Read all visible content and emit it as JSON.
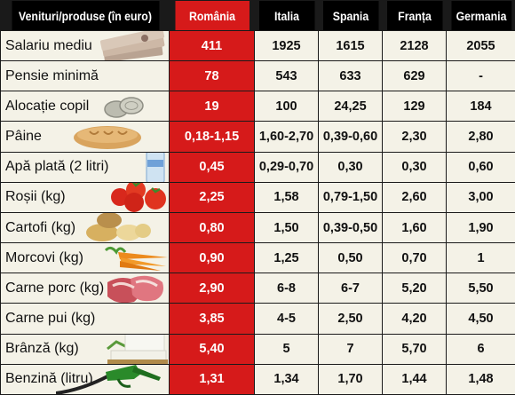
{
  "headers": [
    "Venituri/produse (în euro)",
    "România",
    "Italia",
    "Spania",
    "Franța",
    "Germania"
  ],
  "rows": [
    {
      "label": "Salariu mediu",
      "icon": "money-icon",
      "values": [
        "411",
        "1925",
        "1615",
        "2128",
        "2055"
      ]
    },
    {
      "label": "Pensie minimă",
      "icon": "",
      "values": [
        "78",
        "543",
        "633",
        "629",
        "-"
      ]
    },
    {
      "label": "Alocație copil",
      "icon": "coins-icon",
      "values": [
        "19",
        "100",
        "24,25",
        "129",
        "184"
      ]
    },
    {
      "label": "Pâine",
      "icon": "bread-icon",
      "values": [
        "0,18-1,15",
        "1,60-2,70",
        "0,39-0,60",
        "2,30",
        "2,80"
      ]
    },
    {
      "label": "Apă plată (2 litri)",
      "icon": "water-bottle-icon",
      "values": [
        "0,45",
        "0,29-0,70",
        "0,30",
        "0,30",
        "0,60"
      ]
    },
    {
      "label": "Roșii (kg)",
      "icon": "tomato-icon",
      "values": [
        "2,25",
        "1,58",
        "0,79-1,50",
        "2,60",
        "3,00"
      ]
    },
    {
      "label": "Cartofi (kg)",
      "icon": "potato-icon",
      "values": [
        "0,80",
        "1,50",
        "0,39-0,50",
        "1,60",
        "1,90"
      ]
    },
    {
      "label": "Morcovi (kg)",
      "icon": "carrot-icon",
      "values": [
        "0,90",
        "1,25",
        "0,50",
        "0,70",
        "1"
      ]
    },
    {
      "label": "Carne porc (kg)",
      "icon": "pork-icon",
      "values": [
        "2,90",
        "6-8",
        "6-7",
        "5,20",
        "5,50"
      ]
    },
    {
      "label": "Carne pui (kg)",
      "icon": "",
      "values": [
        "3,85",
        "4-5",
        "2,50",
        "4,20",
        "4,50"
      ]
    },
    {
      "label": "Brânză (kg)",
      "icon": "cheese-icon",
      "values": [
        "5,40",
        "5",
        "7",
        "5,70",
        "6"
      ]
    },
    {
      "label": "Benzină (litru)",
      "icon": "fuel-nozzle-icon",
      "values": [
        "1,31",
        "1,34",
        "1,70",
        "1,44",
        "1,48"
      ]
    }
  ],
  "colors": {
    "romania_column": "#d61a1a",
    "header_bg": "#000000",
    "cell_bg": "#f4f2e7",
    "grid": "#1a1a1a"
  }
}
